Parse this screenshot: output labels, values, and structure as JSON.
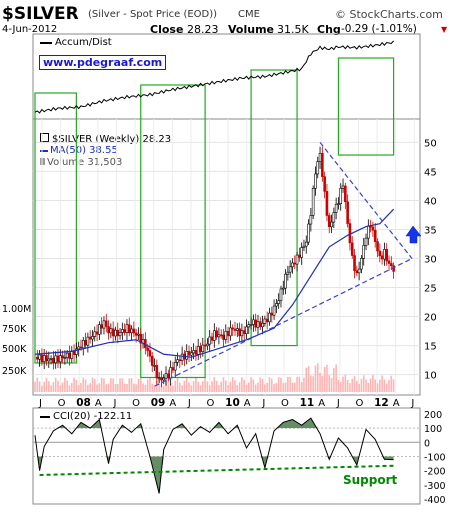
{
  "header": {
    "symbol": "$SILVER",
    "description": "(Silver - Spot Price (EOD))",
    "exchange": "CME",
    "source": "© StockCharts.com",
    "date": "4-Jun-2012",
    "close_label": "Close",
    "close_value": "28.23",
    "volume_label": "Volume",
    "volume_value": "31.5K",
    "chg_label": "Chg",
    "chg_value": "-0.29 (-1.01%)",
    "chg_arrow": "▼",
    "down_color": "#cc0000"
  },
  "accum_panel": {
    "legend": "Accum/Dist",
    "watermark": "www.pdegraaf.com"
  },
  "price_panel": {
    "legend_title": "$SILVER (Weekly) 28.23",
    "legend_ma": "MA(50) 38.55",
    "legend_volume": "Volume 31,503",
    "ma_color": "#1f2fb0",
    "trendline_color": "#3344cc",
    "volume_color": "#ffb3b3"
  },
  "cci_panel": {
    "legend": "CCI(20) -122.11",
    "support_label": "Support",
    "support_color": "#008800",
    "fill_color": "#4a7a4a"
  },
  "chart_data": {
    "type": "candlestick",
    "title": "$SILVER (Silver - Spot Price (EOD)) CME",
    "x_ticks": [
      "J",
      "O",
      "08",
      "A",
      "J",
      "O",
      "09",
      "A",
      "J",
      "O",
      "10",
      "A",
      "J",
      "O",
      "11",
      "A",
      "J",
      "O",
      "12",
      "A",
      "J"
    ],
    "price_axis_ticks": [
      10,
      15,
      20,
      25,
      30,
      35,
      40,
      45,
      50
    ],
    "price_ylim": [
      7,
      53
    ],
    "volume_axis_ticks": [
      "250K",
      "500K",
      "750K",
      "1.00M"
    ],
    "cci_axis_ticks": [
      200,
      100,
      0,
      -100,
      -200,
      -300,
      -400
    ],
    "cci_ylim": [
      -420,
      220
    ],
    "price_path": [
      {
        "t": 0,
        "v": 13
      },
      {
        "t": 4,
        "v": 12.5
      },
      {
        "t": 8,
        "v": 13.5
      },
      {
        "t": 10,
        "v": 15
      },
      {
        "t": 13,
        "v": 17
      },
      {
        "t": 15,
        "v": 19
      },
      {
        "t": 16,
        "v": 17.5
      },
      {
        "t": 18,
        "v": 17
      },
      {
        "t": 20,
        "v": 18
      },
      {
        "t": 22,
        "v": 17
      },
      {
        "t": 24,
        "v": 15
      },
      {
        "t": 26,
        "v": 11
      },
      {
        "t": 27,
        "v": 9
      },
      {
        "t": 29,
        "v": 10
      },
      {
        "t": 31,
        "v": 12.5
      },
      {
        "t": 33,
        "v": 13.5
      },
      {
        "t": 35,
        "v": 14
      },
      {
        "t": 37,
        "v": 15
      },
      {
        "t": 39,
        "v": 17
      },
      {
        "t": 41,
        "v": 16.5
      },
      {
        "t": 43,
        "v": 18
      },
      {
        "t": 45,
        "v": 17
      },
      {
        "t": 47,
        "v": 19
      },
      {
        "t": 49,
        "v": 18.5
      },
      {
        "t": 51,
        "v": 20
      },
      {
        "t": 53,
        "v": 23
      },
      {
        "t": 55,
        "v": 28
      },
      {
        "t": 57,
        "v": 30
      },
      {
        "t": 59,
        "v": 33
      },
      {
        "t": 60,
        "v": 38
      },
      {
        "t": 61,
        "v": 45
      },
      {
        "t": 62,
        "v": 48
      },
      {
        "t": 63,
        "v": 41
      },
      {
        "t": 64,
        "v": 35
      },
      {
        "t": 65,
        "v": 38
      },
      {
        "t": 66,
        "v": 40
      },
      {
        "t": 67,
        "v": 43
      },
      {
        "t": 68,
        "v": 36
      },
      {
        "t": 69,
        "v": 30
      },
      {
        "t": 70,
        "v": 27
      },
      {
        "t": 71,
        "v": 30
      },
      {
        "t": 72,
        "v": 34
      },
      {
        "t": 73,
        "v": 36
      },
      {
        "t": 74,
        "v": 33
      },
      {
        "t": 75,
        "v": 30
      },
      {
        "t": 76,
        "v": 31
      },
      {
        "t": 77,
        "v": 29
      },
      {
        "t": 78,
        "v": 28.2
      }
    ],
    "ma_path": [
      {
        "t": 0,
        "v": 13.5
      },
      {
        "t": 8,
        "v": 14
      },
      {
        "t": 16,
        "v": 15.5
      },
      {
        "t": 22,
        "v": 16
      },
      {
        "t": 28,
        "v": 13.5
      },
      {
        "t": 34,
        "v": 13
      },
      {
        "t": 40,
        "v": 14.5
      },
      {
        "t": 46,
        "v": 16
      },
      {
        "t": 52,
        "v": 18
      },
      {
        "t": 56,
        "v": 22
      },
      {
        "t": 60,
        "v": 27
      },
      {
        "t": 64,
        "v": 32
      },
      {
        "t": 68,
        "v": 34
      },
      {
        "t": 72,
        "v": 35.5
      },
      {
        "t": 75,
        "v": 36
      },
      {
        "t": 78,
        "v": 38.5
      }
    ],
    "accum_dist_path": [
      {
        "t": 0,
        "v": 0.05
      },
      {
        "t": 5,
        "v": 0.1
      },
      {
        "t": 10,
        "v": 0.12
      },
      {
        "t": 15,
        "v": 0.2
      },
      {
        "t": 20,
        "v": 0.25
      },
      {
        "t": 25,
        "v": 0.28
      },
      {
        "t": 30,
        "v": 0.35
      },
      {
        "t": 35,
        "v": 0.4
      },
      {
        "t": 40,
        "v": 0.45
      },
      {
        "t": 45,
        "v": 0.5
      },
      {
        "t": 50,
        "v": 0.52
      },
      {
        "t": 55,
        "v": 0.58
      },
      {
        "t": 58,
        "v": 0.62
      },
      {
        "t": 60,
        "v": 0.82
      },
      {
        "t": 62,
        "v": 0.9
      },
      {
        "t": 64,
        "v": 0.88
      },
      {
        "t": 66,
        "v": 0.91
      },
      {
        "t": 70,
        "v": 0.9
      },
      {
        "t": 74,
        "v": 0.93
      },
      {
        "t": 78,
        "v": 0.97
      }
    ],
    "cci_path": [
      {
        "t": 0,
        "v": 50
      },
      {
        "t": 1,
        "v": -200
      },
      {
        "t": 2,
        "v": -30
      },
      {
        "t": 4,
        "v": 80
      },
      {
        "t": 6,
        "v": 120
      },
      {
        "t": 8,
        "v": 60
      },
      {
        "t": 10,
        "v": 140
      },
      {
        "t": 12,
        "v": 100
      },
      {
        "t": 14,
        "v": 160
      },
      {
        "t": 16,
        "v": -150
      },
      {
        "t": 17,
        "v": 20
      },
      {
        "t": 19,
        "v": 120
      },
      {
        "t": 21,
        "v": 70
      },
      {
        "t": 23,
        "v": 130
      },
      {
        "t": 25,
        "v": -100
      },
      {
        "t": 27,
        "v": -360
      },
      {
        "t": 28,
        "v": -50
      },
      {
        "t": 30,
        "v": 90
      },
      {
        "t": 32,
        "v": 130
      },
      {
        "t": 34,
        "v": 50
      },
      {
        "t": 36,
        "v": 110
      },
      {
        "t": 38,
        "v": 70
      },
      {
        "t": 40,
        "v": 140
      },
      {
        "t": 42,
        "v": 60
      },
      {
        "t": 44,
        "v": 120
      },
      {
        "t": 46,
        "v": -40
      },
      {
        "t": 48,
        "v": 60
      },
      {
        "t": 50,
        "v": -180
      },
      {
        "t": 52,
        "v": 80
      },
      {
        "t": 54,
        "v": 140
      },
      {
        "t": 56,
        "v": 160
      },
      {
        "t": 58,
        "v": 120
      },
      {
        "t": 60,
        "v": 170
      },
      {
        "t": 62,
        "v": 60
      },
      {
        "t": 64,
        "v": -120
      },
      {
        "t": 66,
        "v": 30
      },
      {
        "t": 68,
        "v": -40
      },
      {
        "t": 70,
        "v": -160
      },
      {
        "t": 72,
        "v": 90
      },
      {
        "t": 74,
        "v": 20
      },
      {
        "t": 76,
        "v": -120
      },
      {
        "t": 78,
        "v": -122.11
      }
    ],
    "green_boxes": [
      {
        "panel": "price",
        "from_t": 0,
        "to_t": 9,
        "top": 53,
        "bottom": 12
      },
      {
        "panel": "price",
        "from_t": 23,
        "to_t": 37,
        "top": 53,
        "bottom": 9.5
      },
      {
        "panel": "price",
        "from_t": 47,
        "to_t": 57,
        "top": 53,
        "bottom": 15
      },
      {
        "panel": "accum",
        "from_t": 66,
        "to_t": 78,
        "top": 1.0,
        "bottom": 0.0
      }
    ],
    "trendlines": [
      {
        "name": "support",
        "from": {
          "t": 26,
          "v": 8
        },
        "to": {
          "t": 82,
          "v": 30
        }
      },
      {
        "name": "resistance",
        "from": {
          "t": 62,
          "v": 50
        },
        "to": {
          "t": 82,
          "v": 30
        }
      }
    ],
    "cci_support_line": {
      "from": {
        "t": 1,
        "v": -230
      },
      "to": {
        "t": 78,
        "v": -165
      }
    }
  }
}
